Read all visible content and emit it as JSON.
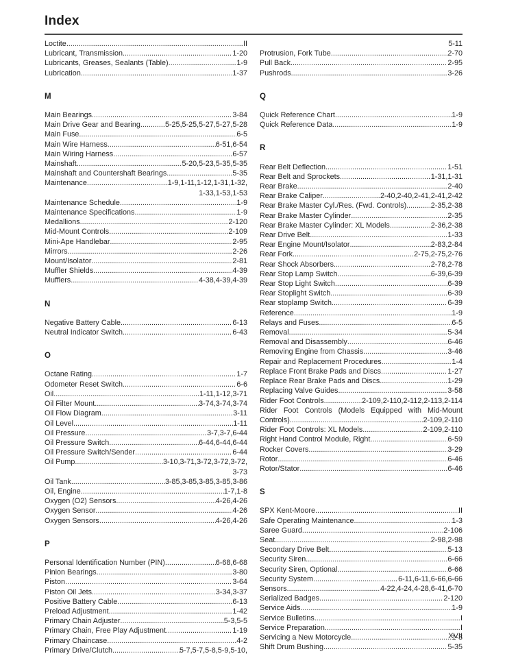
{
  "page": {
    "title": "Index",
    "page_number": "XVII"
  },
  "columns": [
    {
      "side": "left",
      "sections": [
        {
          "letter": "",
          "entries": [
            {
              "term": "Loctite",
              "pages": "II"
            },
            {
              "term": "Lubricant, Transmission",
              "pages": "1-20"
            },
            {
              "term": "Lubricants, Greases, Sealants (Table)",
              "pages": "1-9"
            },
            {
              "term": "Lubrication",
              "pages": "1-37"
            }
          ]
        },
        {
          "letter": "M",
          "entries": [
            {
              "term": "Main Bearings",
              "pages": "3-84"
            },
            {
              "term": "Main Drive Gear and Bearing",
              "pages": "5-25,5-25,5-27,5-27,5-28"
            },
            {
              "term": "Main Fuse",
              "pages": "6-5"
            },
            {
              "term": "Main Wire Harness",
              "pages": "6-51,6-54"
            },
            {
              "term": "Main Wiring Harness",
              "pages": "6-57"
            },
            {
              "term": "Mainshaft",
              "pages": "5-20,5-23,5-35,5-35"
            },
            {
              "term": "Mainshaft and Countershaft Bearings",
              "pages": "5-35"
            },
            {
              "term": "Maintenance",
              "pages": "1-9,1-11,1-12,1-31,1-32,"
            },
            {
              "style": "cont",
              "pages": "1-33,1-53,1-53"
            },
            {
              "term": "Maintenance Schedule",
              "pages": "1-9"
            },
            {
              "term": "Maintenance Specifications",
              "pages": "1-9"
            },
            {
              "term": "Medallions",
              "pages": "2-120"
            },
            {
              "term": "Mid-Mount Controls",
              "pages": "2-109"
            },
            {
              "term": "Mini-Ape Handlebar",
              "pages": "2-95"
            },
            {
              "term": "Mirrors",
              "pages": "2-26"
            },
            {
              "term": "Mount/Isolator",
              "pages": "2-81"
            },
            {
              "term": "Muffler Shields",
              "pages": "4-39"
            },
            {
              "term": "Mufflers",
              "pages": "4-38,4-39,4-39"
            }
          ]
        },
        {
          "letter": "N",
          "entries": [
            {
              "term": "Negative Battery Cable",
              "pages": "6-13"
            },
            {
              "term": "Neutral Indicator Switch",
              "pages": "6-43"
            }
          ]
        },
        {
          "letter": "O",
          "entries": [
            {
              "term": "Octane Rating",
              "pages": "1-7"
            },
            {
              "term": "Odometer Reset Switch",
              "pages": "6-6"
            },
            {
              "term": "Oil",
              "pages": "1-11,1-12,3-71"
            },
            {
              "term": "Oil Filter Mount",
              "pages": "3-74,3-74,3-74"
            },
            {
              "term": "Oil Flow Diagram",
              "pages": "3-11"
            },
            {
              "term": "Oil Level",
              "pages": "1-11"
            },
            {
              "term": "Oil Pressure",
              "pages": "3-7,3-7,6-44"
            },
            {
              "term": "Oil Pressure Switch",
              "pages": "6-44,6-44,6-44"
            },
            {
              "term": "Oil Pressure Switch/Sender",
              "pages": "6-44"
            },
            {
              "term": "Oil Pump",
              "pages": "3-10,3-71,3-72,3-72,3-72,"
            },
            {
              "style": "cont",
              "pages": "3-73"
            },
            {
              "term": "Oil Tank",
              "pages": "3-85,3-85,3-85,3-85,3-86"
            },
            {
              "term": "Oil, Engine",
              "pages": "1-7,1-8"
            },
            {
              "term": "Oxygen (O2) Sensors",
              "pages": "4-26,4-26"
            },
            {
              "term": "Oxygen Sensor",
              "pages": "4-26"
            },
            {
              "term": "Oxygen Sensors",
              "pages": "4-26,4-26"
            }
          ]
        },
        {
          "letter": "P",
          "entries": [
            {
              "term": "Personal Identification Number (PIN)",
              "pages": "6-68,6-68"
            },
            {
              "term": "Pinion Bearings",
              "pages": "3-80"
            },
            {
              "term": "Piston",
              "pages": "3-64"
            },
            {
              "term": "Piston Oil Jets",
              "pages": "3-34,3-37"
            },
            {
              "term": "Positive Battery Cable",
              "pages": "6-13"
            },
            {
              "term": "Preload Adjustment",
              "pages": "1-42"
            },
            {
              "term": "Primary Chain Adjuster",
              "pages": "5-3,5-5"
            },
            {
              "term": "Primary Chain, Free Play Adjustment",
              "pages": "1-19"
            },
            {
              "term": "Primary Chaincase",
              "pages": "4-2"
            },
            {
              "term": "Primary Drive/Clutch",
              "pages": "5-7,5-7,5-8,5-9,5-10,"
            }
          ]
        }
      ]
    },
    {
      "side": "right",
      "sections": [
        {
          "letter": "",
          "entries": [
            {
              "style": "pagesonly",
              "pages": "5-11"
            },
            {
              "term": "Protrusion, Fork Tube",
              "pages": "2-70"
            },
            {
              "term": "Pull Back",
              "pages": "2-95"
            },
            {
              "term": "Pushrods",
              "pages": "3-26"
            }
          ]
        },
        {
          "letter": "Q",
          "entries": [
            {
              "term": "Quick Reference Chart",
              "pages": "1-9"
            },
            {
              "term": "Quick Reference Data",
              "pages": "1-9"
            }
          ]
        },
        {
          "letter": "R",
          "entries": [
            {
              "term": "Rear Belt Deflection",
              "pages": "1-51"
            },
            {
              "term": "Rear Belt and Sprockets",
              "pages": "1-31,1-31"
            },
            {
              "term": "Rear Brake",
              "pages": "2-40"
            },
            {
              "term": "Rear Brake Caliper",
              "pages": "2-40,2-40,2-41,2-41,2-42"
            },
            {
              "term": "Rear Brake Master Cyl./Res. (Fwd. Controls)",
              "pages": "2-35,2-38"
            },
            {
              "term": "Rear Brake Master Cylinder",
              "pages": "2-35"
            },
            {
              "term": "Rear Brake Master Cylinder: XL Models",
              "pages": "2-36,2-38"
            },
            {
              "term": "Rear Drive Belt",
              "pages": "1-33"
            },
            {
              "term": "Rear Engine Mount/Isolator",
              "pages": "2-83,2-84"
            },
            {
              "term": "Rear Fork",
              "pages": "2-75,2-75,2-76"
            },
            {
              "term": "Rear Shock Absorbers",
              "pages": "2-78,2-78"
            },
            {
              "term": "Rear Stop Lamp Switch",
              "pages": "6-39,6-39"
            },
            {
              "term": "Rear Stop Light Switch",
              "pages": "6-39"
            },
            {
              "term": "Rear Stoplight Switch",
              "pages": "6-39"
            },
            {
              "term": "Rear stoplamp Switch",
              "pages": "6-39"
            },
            {
              "term": "Reference",
              "pages": "1-9"
            },
            {
              "term": "Relays and Fuses",
              "pages": "6-5"
            },
            {
              "term": "Removal",
              "pages": "5-34"
            },
            {
              "term": "Removal and Disassembly",
              "pages": "6-46"
            },
            {
              "term": "Removing Engine from Chassis",
              "pages": "3-46"
            },
            {
              "term": "Repair and Replacement Procedures",
              "pages": "1-4"
            },
            {
              "term": "Replace Front Brake Pads and Discs",
              "pages": "1-27"
            },
            {
              "term": "Replace Rear Brake Pads and Discs",
              "pages": "1-29"
            },
            {
              "term": "Replacing Valve Guides",
              "pages": "3-58"
            },
            {
              "term": "Rider Foot Controls",
              "pages": "2-109,2-110,2-112,2-113,2-114"
            },
            {
              "style": "termonly",
              "term": "Rider Foot Controls (Models Equipped with Mid-Mount"
            },
            {
              "term": "Controls)",
              "pages": "2-109,2-110"
            },
            {
              "term": "Rider Foot Controls: XL Models",
              "pages": "2-109,2-110"
            },
            {
              "term": "Right Hand Control Module, Right",
              "pages": "6-59"
            },
            {
              "term": "Rocker Covers",
              "pages": "3-29"
            },
            {
              "term": "Rotor",
              "pages": "6-46"
            },
            {
              "term": "Rotor/Stator",
              "pages": "6-46"
            }
          ]
        },
        {
          "letter": "S",
          "entries": [
            {
              "term": "SPX Kent-Moore",
              "pages": "II"
            },
            {
              "term": "Safe Operating Maintenance",
              "pages": "1-3"
            },
            {
              "term": "Saree Guard",
              "pages": "2-106"
            },
            {
              "term": "Seat",
              "pages": "2-98,2-98"
            },
            {
              "term": "Secondary Drive Belt",
              "pages": "5-13"
            },
            {
              "term": "Security Siren",
              "pages": "6-66"
            },
            {
              "term": "Security Siren, Optional",
              "pages": "6-66"
            },
            {
              "term": "Security System",
              "pages": "6-11,6-11,6-66,6-66"
            },
            {
              "term": "Sensors",
              "pages": "4-22,4-24,4-28,6-41,6-70"
            },
            {
              "term": "Serialized Badges",
              "pages": "2-120"
            },
            {
              "term": "Service Aids",
              "pages": "1-9"
            },
            {
              "term": "Service Bulletins",
              "pages": "I"
            },
            {
              "term": "Service Preparation",
              "pages": "I"
            },
            {
              "term": "Servicing a New Motorcycle",
              "pages": "1-3"
            },
            {
              "term": "Shift Drum Bushing",
              "pages": "5-35"
            }
          ]
        }
      ]
    }
  ]
}
